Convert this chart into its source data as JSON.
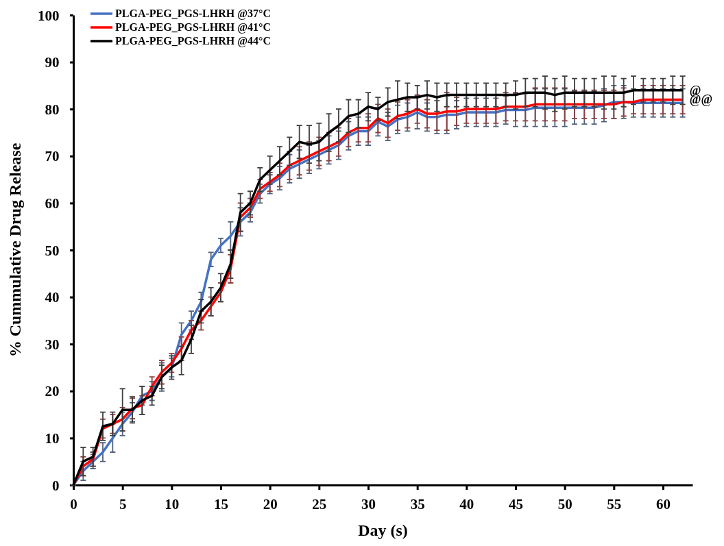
{
  "chart_data": {
    "type": "line",
    "xlabel": "Day (s)",
    "ylabel": "% Cummulative Drug Release",
    "x": [
      0,
      1,
      2,
      3,
      4,
      5,
      6,
      7,
      8,
      9,
      10,
      11,
      12,
      13,
      14,
      15,
      16,
      17,
      18,
      19,
      20,
      21,
      22,
      23,
      24,
      25,
      26,
      27,
      28,
      29,
      30,
      31,
      32,
      33,
      34,
      35,
      36,
      37,
      38,
      39,
      40,
      41,
      42,
      43,
      44,
      45,
      46,
      47,
      48,
      49,
      50,
      51,
      52,
      53,
      54,
      55,
      56,
      57,
      58,
      59,
      60,
      61,
      62
    ],
    "xlim": [
      0,
      63
    ],
    "xticks": [
      0,
      5,
      10,
      15,
      20,
      25,
      30,
      35,
      40,
      45,
      50,
      55,
      60
    ],
    "ylim": [
      0,
      100
    ],
    "yticks": [
      0,
      10,
      20,
      30,
      40,
      50,
      60,
      70,
      80,
      90,
      100
    ],
    "grid": false,
    "legend": "top left",
    "marker": "none",
    "line_style": "solid",
    "series": [
      {
        "name": "PLGA-PEG_PGS-LHRH @37°C",
        "color": "#4472c4",
        "values": [
          0,
          3,
          5,
          7,
          10,
          13,
          15.5,
          19,
          20,
          23,
          25,
          32,
          35,
          39,
          48,
          51,
          53,
          56,
          58,
          62,
          64,
          65.3,
          67.3,
          68.3,
          69.3,
          70.3,
          71.3,
          72.3,
          74.3,
          75.3,
          75.3,
          77.3,
          76.3,
          77.8,
          78.3,
          79.3,
          78.3,
          78.3,
          78.8,
          78.8,
          79.3,
          79.3,
          79.3,
          79.3,
          79.8,
          79.8,
          79.8,
          80.3,
          80.3,
          80.3,
          80.3,
          80.3,
          80.3,
          80.3,
          80.8,
          81.5,
          81.5,
          81.3,
          81.3,
          81.3,
          81.3,
          81.3,
          81.3
        ],
        "errors": [
          0,
          2,
          1.5,
          2,
          3,
          2.5,
          2,
          2,
          2,
          3,
          2,
          2.5,
          2,
          2,
          1.5,
          1.5,
          3,
          3,
          2,
          2,
          2,
          2.5,
          3,
          3,
          3,
          3,
          3,
          3,
          3,
          3,
          3,
          3,
          3,
          3,
          3,
          3.5,
          3,
          3.5,
          4,
          3,
          3,
          3,
          3,
          3,
          3,
          3.5,
          3.5,
          4,
          4,
          4,
          4,
          3.5,
          3.5,
          3.5,
          3.5,
          3.5,
          3.5,
          3,
          3,
          3,
          3,
          3,
          3
        ]
      },
      {
        "name": "PLGA-PEG_PGS-LHRH @41°C",
        "color": "#ff0000",
        "values": [
          0,
          4,
          5.5,
          12,
          13,
          14,
          16.3,
          17,
          21,
          24,
          26,
          29,
          33,
          35,
          38,
          41,
          46,
          57,
          59,
          63,
          64.5,
          66,
          68,
          69,
          70,
          71,
          72,
          73,
          75,
          76,
          76,
          78,
          77,
          78.5,
          79,
          80,
          79,
          79,
          79.5,
          79.5,
          80,
          80,
          80,
          80,
          80.5,
          80.5,
          80.5,
          81,
          81,
          81,
          81,
          81,
          81,
          81,
          81,
          81,
          81.5,
          81.5,
          82,
          82,
          82,
          82,
          82
        ],
        "errors": [
          0,
          2,
          1.5,
          2,
          2,
          2.5,
          2.2,
          2,
          2,
          2.5,
          2,
          2.5,
          2,
          2,
          2,
          2,
          3,
          3,
          2,
          2,
          2,
          2.5,
          3,
          3,
          3,
          3,
          3,
          3,
          3,
          3,
          3,
          3,
          3,
          3,
          3,
          3,
          3,
          3.5,
          4,
          3,
          3,
          3,
          3,
          3,
          3,
          3,
          3,
          3.5,
          3.5,
          3.5,
          3.5,
          3,
          3,
          3,
          3,
          3,
          3,
          2.5,
          3,
          3,
          3,
          3,
          3
        ]
      },
      {
        "name": "PLGA-PEG_PGS-LHRH @44°C",
        "color": "#000000",
        "values": [
          0,
          5,
          6,
          12.5,
          13,
          16,
          16,
          18,
          19,
          23,
          25,
          26.5,
          31,
          37,
          39,
          42,
          47,
          58,
          60,
          65,
          67,
          69,
          71,
          73,
          72.5,
          73,
          75,
          76.5,
          78.5,
          79,
          80.5,
          80,
          81.5,
          82,
          82.5,
          82.5,
          83,
          82.5,
          83,
          83,
          83,
          83,
          83,
          83,
          83,
          83,
          83.5,
          83.5,
          83.5,
          83,
          83.5,
          83.5,
          83.5,
          83.5,
          83.5,
          83.5,
          83.5,
          84,
          84,
          84,
          84,
          84,
          84
        ],
        "errors": [
          0,
          3,
          2,
          3,
          2.5,
          4.5,
          2.8,
          3,
          2,
          2.5,
          2.5,
          3,
          3,
          2.5,
          3,
          3,
          3,
          4,
          2.5,
          2.5,
          3,
          3,
          3,
          3.5,
          4,
          4,
          4,
          3.5,
          3.5,
          3,
          3,
          2.5,
          3,
          4,
          3,
          2.5,
          3,
          3,
          2.5,
          2.5,
          2.5,
          2.5,
          2.5,
          2.5,
          2.5,
          3,
          3,
          3,
          3.5,
          3.5,
          3.5,
          3,
          3,
          3,
          3.5,
          3.5,
          3,
          3,
          2.5,
          2.5,
          2.5,
          3,
          3
        ]
      }
    ],
    "annotations": [
      {
        "text": "@",
        "x": 62,
        "y": 84
      },
      {
        "text": "@@",
        "x": 62,
        "y": 82
      }
    ]
  }
}
